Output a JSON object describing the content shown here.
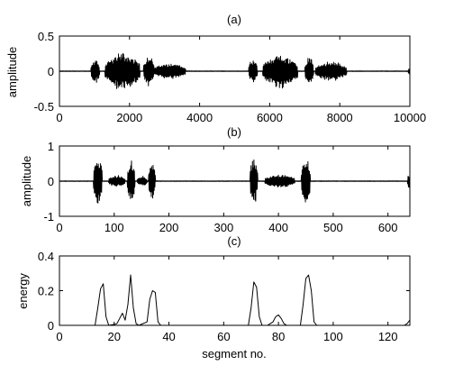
{
  "chart_data": [
    {
      "type": "line",
      "title": "(a)",
      "xlabel": "",
      "ylabel": "amplitude",
      "xlim": [
        0,
        10000
      ],
      "ylim": [
        -0.5,
        0.5
      ],
      "xticks": [
        0,
        2000,
        4000,
        6000,
        8000,
        10000
      ],
      "yticks": [
        -0.5,
        0,
        0.5
      ],
      "xtick_labels": [
        "0",
        "2000",
        "4000",
        "6000",
        "8000",
        "10000"
      ],
      "ytick_labels": [
        "-0.5",
        "0",
        "0.5"
      ],
      "grid": false,
      "series": [
        {
          "kind": "waveform",
          "samples": 10000,
          "bursts": [
            {
              "start": 900,
              "end": 1150,
              "peak": 0.18
            },
            {
              "start": 1300,
              "end": 2300,
              "peak": 0.28
            },
            {
              "start": 2400,
              "end": 2700,
              "peak": 0.25
            },
            {
              "start": 2700,
              "end": 3600,
              "peak": 0.12
            },
            {
              "start": 5400,
              "end": 5650,
              "peak": 0.2
            },
            {
              "start": 5800,
              "end": 6800,
              "peak": 0.25
            },
            {
              "start": 7000,
              "end": 7250,
              "peak": 0.22
            },
            {
              "start": 7300,
              "end": 8200,
              "peak": 0.15
            },
            {
              "start": 9950,
              "end": 10000,
              "peak": 0.05
            }
          ]
        }
      ]
    },
    {
      "type": "line",
      "title": "(b)",
      "xlabel": "",
      "ylabel": "amplitude",
      "xlim": [
        0,
        640
      ],
      "ylim": [
        -1,
        1
      ],
      "xticks": [
        0,
        100,
        200,
        300,
        400,
        500,
        600
      ],
      "yticks": [
        -1,
        0,
        1
      ],
      "xtick_labels": [
        "0",
        "100",
        "200",
        "300",
        "400",
        "500",
        "600"
      ],
      "ytick_labels": [
        "-1",
        "0",
        "1"
      ],
      "grid": false,
      "series": [
        {
          "kind": "waveform",
          "samples": 640,
          "bursts": [
            {
              "start": 62,
              "end": 78,
              "peak": 0.8
            },
            {
              "start": 90,
              "end": 120,
              "peak": 0.18
            },
            {
              "start": 124,
              "end": 138,
              "peak": 0.65
            },
            {
              "start": 142,
              "end": 160,
              "peak": 0.15
            },
            {
              "start": 163,
              "end": 175,
              "peak": 0.6
            },
            {
              "start": 348,
              "end": 362,
              "peak": 0.75
            },
            {
              "start": 375,
              "end": 430,
              "peak": 0.2
            },
            {
              "start": 442,
              "end": 458,
              "peak": 0.75
            },
            {
              "start": 636,
              "end": 640,
              "peak": 0.25
            }
          ]
        }
      ]
    },
    {
      "type": "line",
      "title": "(c)",
      "xlabel": "segment no.",
      "ylabel": "energy",
      "xlim": [
        0,
        128
      ],
      "ylim": [
        0,
        0.4
      ],
      "xticks": [
        0,
        20,
        40,
        60,
        80,
        100,
        120
      ],
      "yticks": [
        0,
        0.2,
        0.4
      ],
      "xtick_labels": [
        "0",
        "20",
        "40",
        "60",
        "80",
        "100",
        "120"
      ],
      "ytick_labels": [
        "0",
        "0.2",
        "0.4"
      ],
      "grid": false,
      "series": [
        {
          "kind": "curve",
          "points": [
            [
              0,
              0
            ],
            [
              13,
              0
            ],
            [
              14,
              0.1
            ],
            [
              15,
              0.21
            ],
            [
              16,
              0.24
            ],
            [
              17,
              0.05
            ],
            [
              18,
              0
            ],
            [
              20,
              0.005
            ],
            [
              21,
              0.01
            ],
            [
              22,
              0.04
            ],
            [
              23,
              0.07
            ],
            [
              24,
              0.03
            ],
            [
              25,
              0.12
            ],
            [
              26,
              0.29
            ],
            [
              27,
              0.1
            ],
            [
              28,
              0.01
            ],
            [
              29,
              0
            ],
            [
              32,
              0.02
            ],
            [
              33,
              0.15
            ],
            [
              34,
              0.2
            ],
            [
              35,
              0.19
            ],
            [
              36,
              0.02
            ],
            [
              37,
              0
            ],
            [
              69,
              0
            ],
            [
              70,
              0.1
            ],
            [
              71,
              0.25
            ],
            [
              72,
              0.22
            ],
            [
              73,
              0.05
            ],
            [
              74,
              0
            ],
            [
              76,
              0
            ],
            [
              77,
              0.01
            ],
            [
              78,
              0.02
            ],
            [
              79,
              0.05
            ],
            [
              80,
              0.06
            ],
            [
              81,
              0.04
            ],
            [
              82,
              0.01
            ],
            [
              83,
              0
            ],
            [
              88,
              0
            ],
            [
              89,
              0.12
            ],
            [
              90,
              0.27
            ],
            [
              91,
              0.29
            ],
            [
              92,
              0.2
            ],
            [
              93,
              0.02
            ],
            [
              94,
              0
            ],
            [
              126,
              0
            ],
            [
              127,
              0.01
            ],
            [
              128,
              0.03
            ]
          ]
        }
      ]
    }
  ]
}
